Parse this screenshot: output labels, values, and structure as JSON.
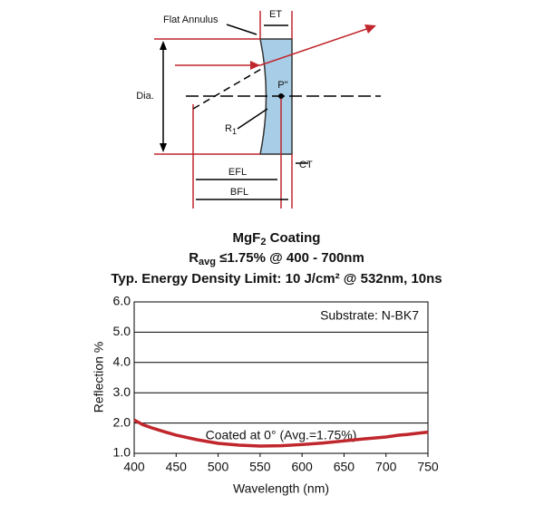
{
  "diagram": {
    "flat_annulus": "Flat Annulus",
    "et": "ET",
    "dia": "Dia.",
    "p": "P''",
    "r": {
      "main": "R",
      "sub": "1"
    },
    "ct": "CT",
    "efl": "EFL",
    "bfl": "BFL"
  },
  "chart_data": {
    "type": "line",
    "title": {
      "main": "MgF",
      "sub": "2",
      "rest": " Coating"
    },
    "subtitle": {
      "main": "R",
      "sub": "avg",
      "rest": " ≤1.75% @ 400 - 700nm"
    },
    "subtitle2": "Typ. Energy Density Limit: 10 J/cm² @ 532nm, 10ns",
    "annotations": [
      "Substrate: N-BK7",
      "Coated at 0°  (Avg.=1.75%)"
    ],
    "x_label": "Wavelength (nm)",
    "y_label": "Reflection %",
    "x": [
      400,
      410,
      420,
      435,
      450,
      475,
      500,
      525,
      550,
      575,
      600,
      625,
      650,
      675,
      700,
      715,
      725,
      740,
      750
    ],
    "values": [
      2.1,
      1.95,
      1.85,
      1.72,
      1.6,
      1.45,
      1.33,
      1.27,
      1.24,
      1.25,
      1.29,
      1.34,
      1.41,
      1.48,
      1.54,
      1.6,
      1.62,
      1.67,
      1.7
    ],
    "color": "#c0272d",
    "xlim": [
      400,
      750
    ],
    "xticks": [
      400,
      450,
      500,
      550,
      600,
      650,
      700,
      750
    ],
    "ylim": [
      1,
      6
    ],
    "yticks": [
      {
        "value": 1,
        "label": "1.0"
      },
      {
        "value": 2,
        "label": "2.0"
      },
      {
        "value": 3,
        "label": "3.0"
      },
      {
        "value": 4,
        "label": "4.0"
      },
      {
        "value": 5,
        "label": "5.0"
      },
      {
        "value": 6,
        "label": "6.0"
      }
    ],
    "grid": true
  }
}
